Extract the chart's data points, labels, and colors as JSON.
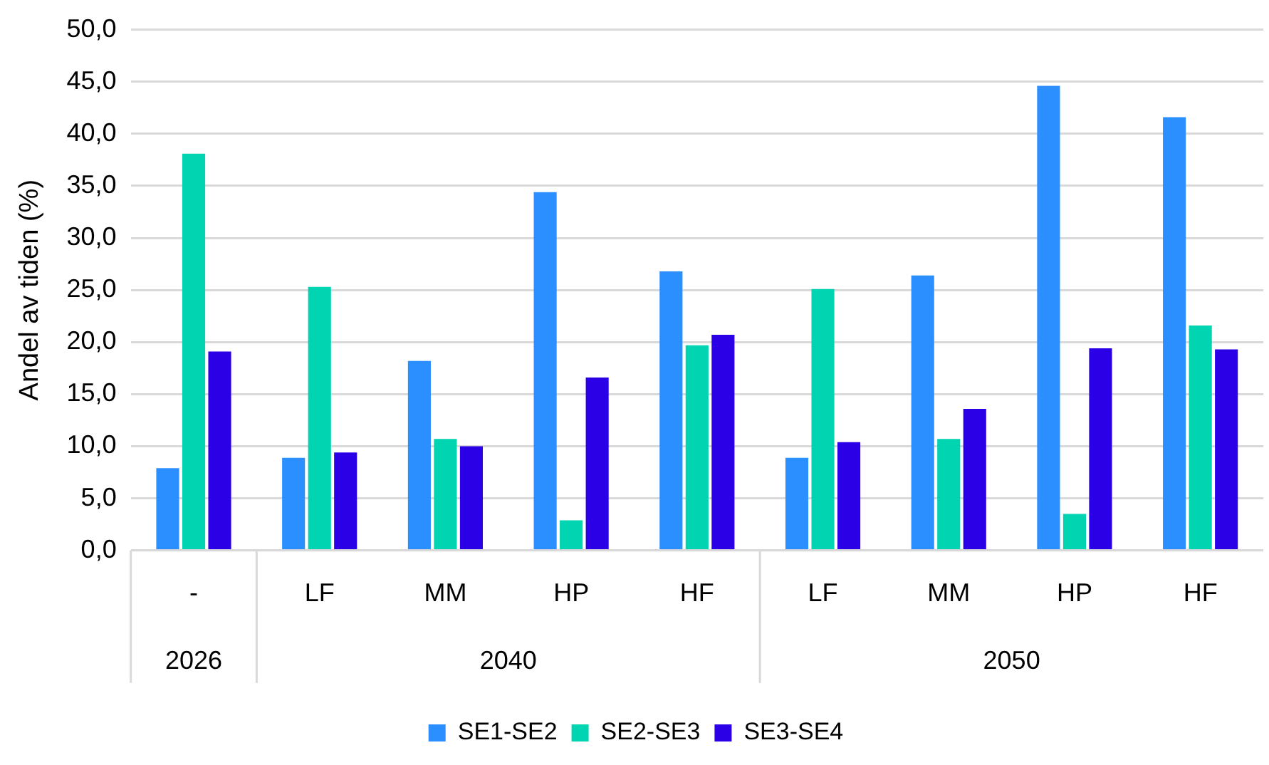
{
  "chart_data": {
    "type": "bar",
    "ylabel": "Andel av tiden (%)",
    "categories": [
      "-",
      "LF",
      "MM",
      "HP",
      "HF",
      "LF",
      "MM",
      "HP",
      "HF"
    ],
    "annotations": [
      "2026",
      "2040",
      "2050"
    ],
    "series": [
      {
        "name": "SE1-SE2",
        "color": "#2b8fff",
        "values": [
          7.9,
          8.9,
          18.2,
          34.4,
          26.8,
          8.9,
          26.4,
          44.6,
          41.6
        ]
      },
      {
        "name": "SE2-SE3",
        "color": "#00d4b0",
        "values": [
          38.1,
          25.3,
          10.7,
          2.9,
          19.7,
          25.1,
          10.7,
          3.5,
          21.6
        ]
      },
      {
        "name": "SE3-SE4",
        "color": "#2c00e6",
        "values": [
          19.1,
          9.4,
          10.0,
          16.6,
          20.7,
          10.4,
          13.6,
          19.4,
          19.3
        ]
      }
    ],
    "ylim": [
      0,
      50
    ],
    "yticks": [
      {
        "value": 0,
        "label": "0,0"
      },
      {
        "value": 5,
        "label": "5,0"
      },
      {
        "value": 10,
        "label": "10,0"
      },
      {
        "value": 15,
        "label": "15,0"
      },
      {
        "value": 20,
        "label": "20,0"
      },
      {
        "value": 25,
        "label": "25,0"
      },
      {
        "value": 30,
        "label": "30,0"
      },
      {
        "value": 35,
        "label": "35,0"
      },
      {
        "value": 40,
        "label": "40,0"
      },
      {
        "value": 45,
        "label": "45,0"
      },
      {
        "value": 50,
        "label": "50,0"
      }
    ],
    "grid": "y",
    "legend": "bottom"
  }
}
